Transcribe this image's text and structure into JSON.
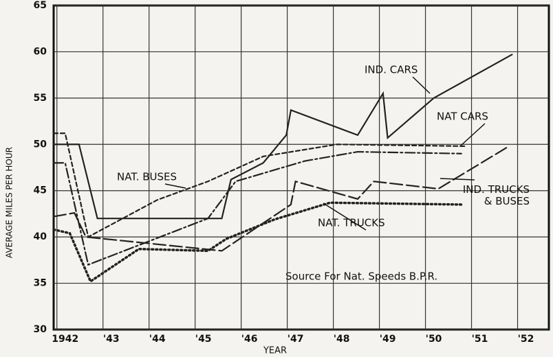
{
  "chart_data": {
    "type": "line",
    "x_label": "YEAR",
    "y_label": "AVERAGE MILES PER HOUR",
    "annotation": "Source For Nat. Speeds B.P.R.",
    "xlim": [
      1941.75,
      1952.5
    ],
    "ylim": [
      30,
      65
    ],
    "xticks": [
      1942,
      {
        "value": 1943,
        "label": "'43"
      },
      {
        "value": 1944,
        "label": "'44"
      },
      {
        "value": 1945,
        "label": "'45"
      },
      {
        "value": 1946,
        "label": "'46"
      },
      {
        "value": 1947,
        "label": "'47"
      },
      {
        "value": 1948,
        "label": "'48"
      },
      {
        "value": 1949,
        "label": "'49"
      },
      {
        "value": 1950,
        "label": "'50"
      },
      {
        "value": 1951,
        "label": "'51"
      },
      {
        "value": 1952,
        "label": "'52"
      }
    ],
    "yticks": [
      30,
      35,
      40,
      45,
      50,
      55,
      60,
      65
    ],
    "grid": true,
    "series": [
      {
        "name": "IND. CARS",
        "color": "#222",
        "dash": "solid",
        "x": [
          1941.75,
          1942.3,
          1942.7,
          1945.4,
          1945.6,
          1946.3,
          1946.8,
          1946.9,
          1948.35,
          1948.9,
          1949.0,
          1950.0,
          1951.7
        ],
        "values": [
          50,
          50,
          42,
          42,
          46.2,
          48,
          51,
          53.7,
          51,
          55.5,
          50.7,
          55,
          59.7
        ]
      },
      {
        "name": "NAT CARS",
        "color": "#222",
        "dash": "short",
        "x": [
          1941.75,
          1942.0,
          1942.5,
          1944.0,
          1945.1,
          1946.3,
          1947.9,
          1950.7
        ],
        "values": [
          51.2,
          51.2,
          40,
          44,
          46,
          48.7,
          50,
          49.8
        ]
      },
      {
        "name": "NAT. BUSES",
        "color": "#222",
        "dash": "dashdot",
        "x": [
          1941.75,
          1942.0,
          1942.5,
          1945.1,
          1945.7,
          1947.2,
          1948.35,
          1950.6
        ],
        "values": [
          48,
          48,
          37,
          42,
          46,
          48.2,
          49.2,
          49
        ]
      },
      {
        "name": "IND. TRUCKS & BUSES",
        "color": "#222",
        "dash": "long",
        "x": [
          1941.75,
          1942.2,
          1942.45,
          1945.4,
          1946.9,
          1947.0,
          1948.35,
          1948.7,
          1950.1,
          1951.6
        ],
        "values": [
          42.2,
          42.6,
          40,
          38.5,
          43.5,
          46,
          44.1,
          46,
          45.2,
          49.7
        ]
      },
      {
        "name": "NAT. TRUCKS",
        "color": "#222",
        "dash": "dot",
        "x": [
          1941.75,
          1942.1,
          1942.55,
          1943.6,
          1945.1,
          1945.5,
          1946.55,
          1947.75,
          1950.6
        ],
        "values": [
          40.8,
          40.4,
          35.2,
          38.7,
          38.5,
          39.8,
          41.9,
          43.7,
          43.5
        ]
      }
    ]
  }
}
